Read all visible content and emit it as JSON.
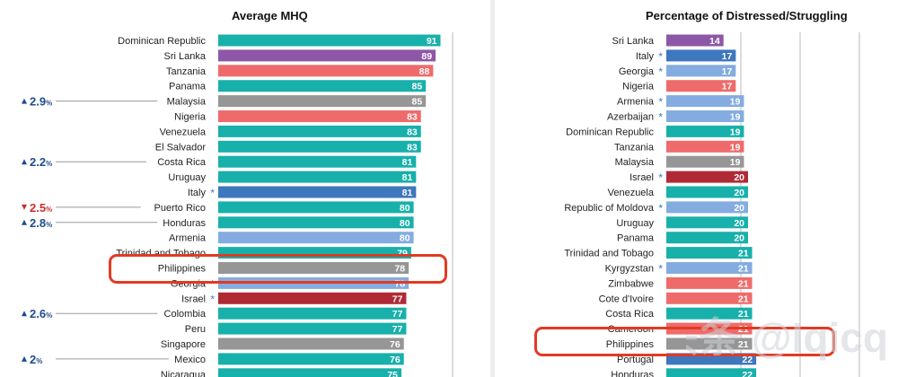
{
  "left_title": "Average MHQ",
  "right_title": "Percentage of Distressed/Struggling",
  "watermark": "头条 @Iqicq",
  "colors": {
    "teal": "#18b0aa",
    "purple": "#8d57a8",
    "salmon": "#ef6b6b",
    "gray": "#969696",
    "blue": "#3d77bd",
    "lightblue": "#84ace0",
    "darkred": "#b02a36",
    "change_up": "#1f4c8c",
    "change_down": "#c8302b",
    "highlight": "#e23a22"
  },
  "chart_data": [
    {
      "type": "bar",
      "title": "Average MHQ",
      "categories": [
        "Dominican Republic",
        "Sri Lanka",
        "Tanzania",
        "Panama",
        "Malaysia",
        "Nigeria",
        "Venezuela",
        "El Salvador",
        "Costa Rica",
        "Uruguay",
        "Italy",
        "Puerto Rico",
        "Honduras",
        "Armenia",
        "Trinidad and Tobago",
        "Philippines",
        "Georgia",
        "Israel",
        "Colombia",
        "Peru",
        "Singapore",
        "Mexico",
        "Nicaragua"
      ],
      "values": [
        91,
        89,
        88,
        85,
        85,
        83,
        83,
        83,
        81,
        81,
        81,
        80,
        80,
        80,
        79,
        78,
        78,
        77,
        77,
        77,
        76,
        76,
        75
      ],
      "colors": [
        "teal",
        "purple",
        "salmon",
        "teal",
        "gray",
        "salmon",
        "teal",
        "teal",
        "teal",
        "teal",
        "blue",
        "teal",
        "teal",
        "lightblue",
        "teal",
        "gray",
        "lightblue",
        "darkred",
        "teal",
        "teal",
        "gray",
        "teal",
        "teal"
      ],
      "asterisk": [
        false,
        false,
        false,
        false,
        false,
        false,
        false,
        false,
        false,
        false,
        true,
        false,
        false,
        false,
        false,
        false,
        true,
        true,
        false,
        false,
        false,
        false,
        false
      ],
      "changes": [
        {
          "country": "Malaysia",
          "dir": "up",
          "value": "2.9"
        },
        {
          "country": "Costa Rica",
          "dir": "up",
          "value": "2.2"
        },
        {
          "country": "Puerto Rico",
          "dir": "down",
          "value": "2.5"
        },
        {
          "country": "Honduras",
          "dir": "up",
          "value": "2.8"
        },
        {
          "country": "Colombia",
          "dir": "up",
          "value": "2.6"
        },
        {
          "country": "Mexico",
          "dir": "up",
          "value": "2"
        }
      ],
      "change_unit": "%",
      "highlight": "Philippines"
    },
    {
      "type": "bar",
      "title": "Percentage of Distressed/Struggling",
      "categories": [
        "Sri Lanka",
        "Italy",
        "Georgia",
        "Nigeria",
        "Armenia",
        "Azerbaijan",
        "Dominican Republic",
        "Tanzania",
        "Malaysia",
        "Israel",
        "Venezuela",
        "Republic of Moldova",
        "Uruguay",
        "Panama",
        "Trinidad and Tobago",
        "Kyrgyzstan",
        "Zimbabwe",
        "Cote d'Ivoire",
        "Costa Rica",
        "Cameroon",
        "Philippines",
        "Portugal",
        "Honduras"
      ],
      "values": [
        14,
        17,
        17,
        17,
        19,
        19,
        19,
        19,
        19,
        20,
        20,
        20,
        20,
        20,
        21,
        21,
        21,
        21,
        21,
        21,
        21,
        22,
        22
      ],
      "colors": [
        "purple",
        "blue",
        "lightblue",
        "salmon",
        "lightblue",
        "lightblue",
        "teal",
        "salmon",
        "gray",
        "darkred",
        "teal",
        "lightblue",
        "teal",
        "teal",
        "teal",
        "lightblue",
        "salmon",
        "salmon",
        "teal",
        "salmon",
        "gray",
        "blue",
        "teal"
      ],
      "asterisk": [
        false,
        true,
        true,
        false,
        true,
        true,
        false,
        false,
        false,
        true,
        false,
        true,
        false,
        false,
        false,
        true,
        false,
        false,
        false,
        false,
        false,
        false,
        false
      ],
      "highlight": "Philippines"
    }
  ]
}
